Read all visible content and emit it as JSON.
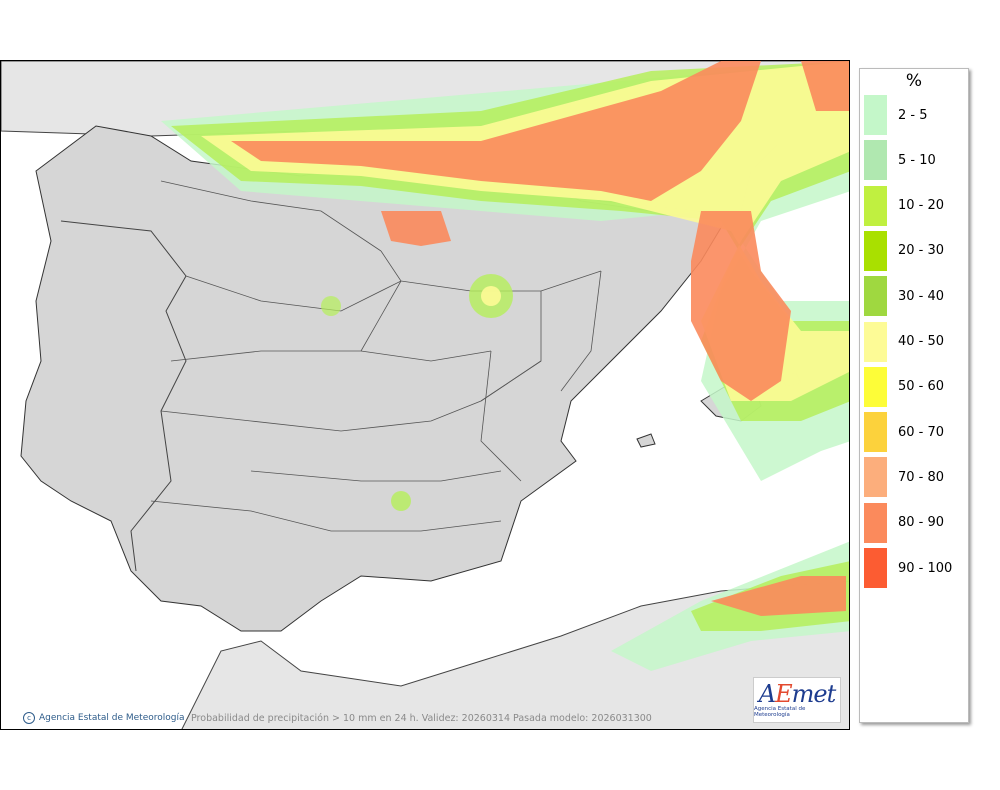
{
  "map": {
    "credit": "Agencia Estatal de Meteorología",
    "caption": "Probabilidad de precipitación > 10 mm en 24 h. Validez: 20260314 Pasada modelo: 2026031300",
    "logo_text": "AEmet",
    "logo_subtext": "Agencia Estatal de Meteorología",
    "colors": {
      "sea": "#ffffff",
      "land": "#d9d9d9",
      "outside": "#e8e8e8"
    }
  },
  "legend": {
    "title": "%",
    "items": [
      {
        "label": "2 - 5",
        "color": "#c4f7c9"
      },
      {
        "label": "5 - 10",
        "color": "#b0e8b0"
      },
      {
        "label": "10 - 20",
        "color": "#c0f040"
      },
      {
        "label": "20 - 30",
        "color": "#a9e000"
      },
      {
        "label": "30 - 40",
        "color": "#9fd840"
      },
      {
        "label": "40 - 50",
        "color": "#fdfb96"
      },
      {
        "label": "50 - 60",
        "color": "#fdfd38"
      },
      {
        "label": "60 - 70",
        "color": "#fcd23c"
      },
      {
        "label": "70 - 80",
        "color": "#fcae7c"
      },
      {
        "label": "80 - 90",
        "color": "#fb8a5c"
      },
      {
        "label": "90 - 100",
        "color": "#fc5c32"
      }
    ]
  }
}
